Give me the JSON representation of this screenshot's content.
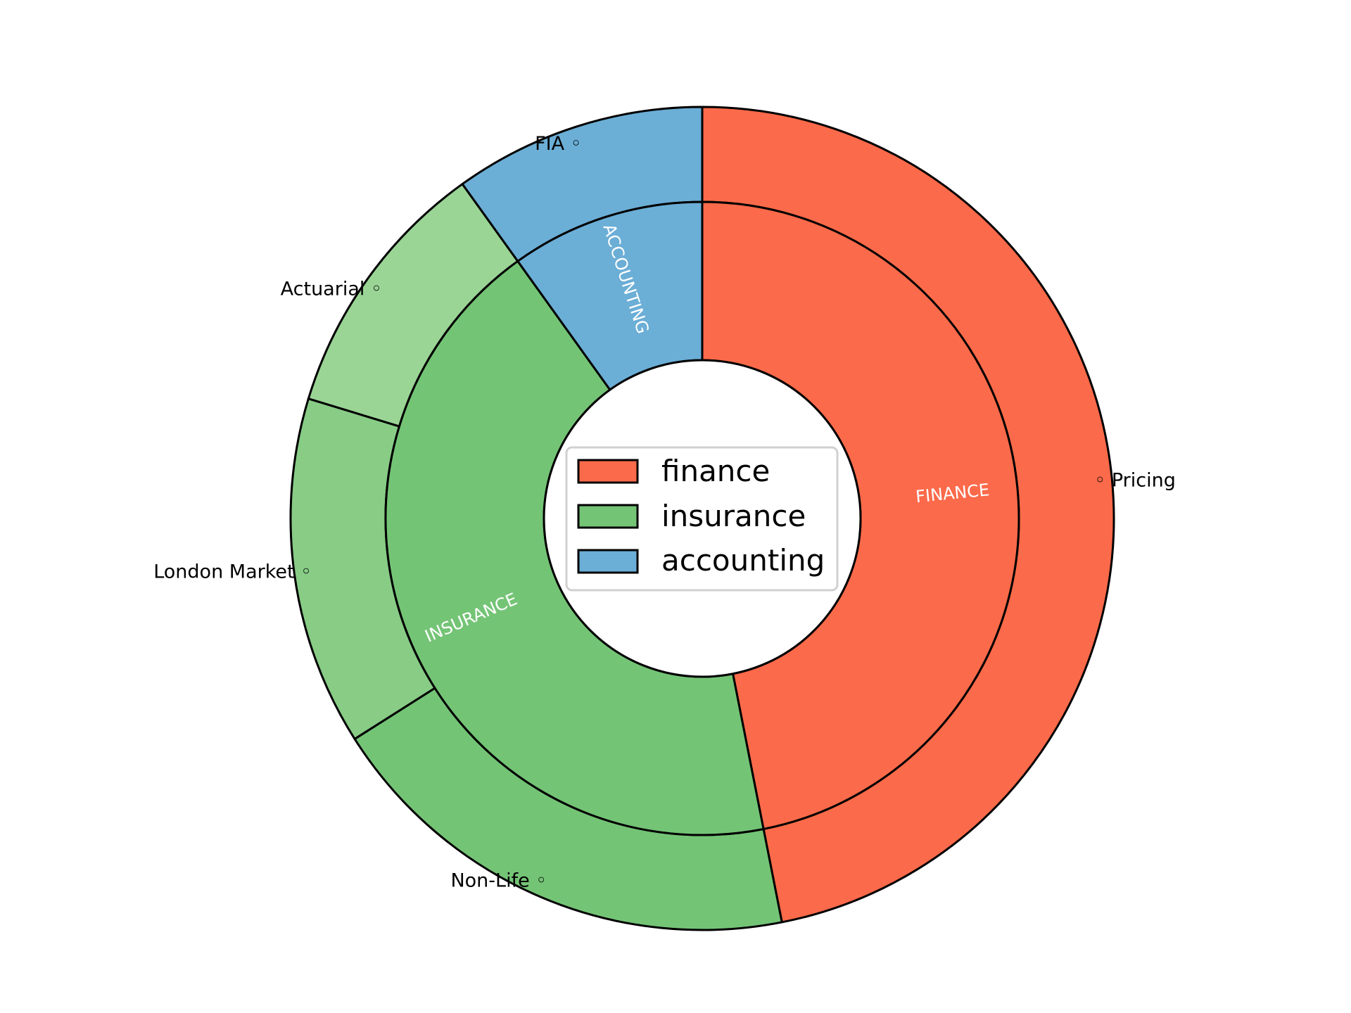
{
  "chart_data": {
    "type": "pie",
    "subtype": "nested-donut",
    "inner_ring": {
      "categories": [
        "FINANCE",
        "INSURANCE",
        "ACCOUNTING"
      ],
      "values": [
        46.9,
        43.2,
        9.9
      ],
      "colors": [
        "#fb6a4a",
        "#74c476",
        "#6baed6"
      ]
    },
    "outer_ring": {
      "categories": [
        "Pricing",
        "Non-Life",
        "London Market",
        "Actuarial",
        "FIA"
      ],
      "values": [
        46.9,
        19.1,
        13.7,
        10.4,
        9.9
      ],
      "parents": [
        "FINANCE",
        "INSURANCE",
        "INSURANCE",
        "INSURANCE",
        "ACCOUNTING"
      ],
      "colors": [
        "#fb6a4a",
        "#74c476",
        "#88cc86",
        "#9ad595",
        "#6baed6"
      ]
    },
    "legend": {
      "position": "center",
      "entries": [
        {
          "label": "finance",
          "color": "#fb6a4a"
        },
        {
          "label": "insurance",
          "color": "#74c476"
        },
        {
          "label": "accounting",
          "color": "#6baed6"
        }
      ]
    },
    "start_angle_deg": 90,
    "direction": "clockwise"
  }
}
